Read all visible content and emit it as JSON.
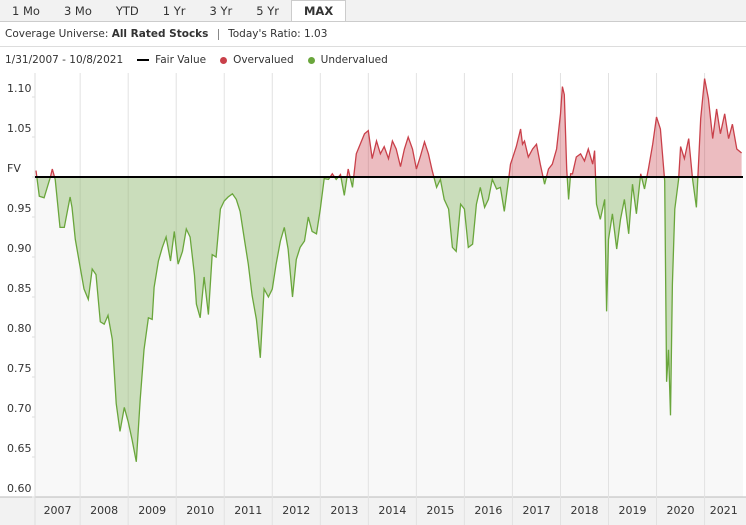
{
  "tabs": [
    "1 Mo",
    "3 Mo",
    "YTD",
    "1 Yr",
    "3 Yr",
    "5 Yr",
    "MAX"
  ],
  "selected_tab": 6,
  "chart_data": {
    "type": "area-ratio",
    "universe_label": "Coverage Universe:",
    "universe": "All Rated Stocks",
    "ratio_text": "Today's Ratio: 1.03",
    "date_range": "1/31/2007 - 10/8/2021",
    "legend": [
      {
        "name": "Fair Value",
        "color": "#000000"
      },
      {
        "name": "Overvalued",
        "color": "#c9404a"
      },
      {
        "name": "Undervalued",
        "color": "#6aa63c"
      }
    ],
    "fair_value": 1,
    "xlim": [
      2007.06,
      2021.8
    ],
    "xticks": [
      2007,
      2008,
      2009,
      2010,
      2011,
      2012,
      2013,
      2014,
      2015,
      2016,
      2017,
      2018,
      2019,
      2020,
      2021
    ],
    "ylim": [
      0.6,
      1.13
    ],
    "yticks": [
      {
        "value": 0.6,
        "label": "0.60"
      },
      0.65,
      {
        "value": 0.7,
        "label": "0.70"
      },
      0.75,
      {
        "value": 0.8,
        "label": "0.80"
      },
      0.85,
      {
        "value": 0.9,
        "label": "0.90"
      },
      0.95,
      {
        "value": 1,
        "label": "FV"
      },
      1.05,
      {
        "value": 1.1,
        "label": "1.10"
      }
    ],
    "x": [
      2007.08,
      2007.15,
      2007.25,
      2007.38,
      2007.42,
      2007.48,
      2007.58,
      2007.67,
      2007.79,
      2007.83,
      2007.9,
      2008.0,
      2008.08,
      2008.17,
      2008.25,
      2008.33,
      2008.42,
      2008.5,
      2008.58,
      2008.67,
      2008.75,
      2008.83,
      2008.92,
      2009.0,
      2009.08,
      2009.17,
      2009.25,
      2009.33,
      2009.42,
      2009.5,
      2009.54,
      2009.63,
      2009.71,
      2009.79,
      2009.88,
      2009.96,
      2010.04,
      2010.13,
      2010.21,
      2010.29,
      2010.38,
      2010.42,
      2010.5,
      2010.58,
      2010.67,
      2010.75,
      2010.83,
      2010.92,
      2011.0,
      2011.08,
      2011.17,
      2011.25,
      2011.33,
      2011.42,
      2011.5,
      2011.58,
      2011.67,
      2011.75,
      2011.83,
      2011.92,
      2012.0,
      2012.08,
      2012.17,
      2012.25,
      2012.33,
      2012.42,
      2012.5,
      2012.58,
      2012.67,
      2012.75,
      2012.83,
      2012.92,
      2013.0,
      2013.08,
      2013.17,
      2013.25,
      2013.33,
      2013.42,
      2013.5,
      2013.58,
      2013.67,
      2013.75,
      2013.83,
      2013.92,
      2014.0,
      2014.08,
      2014.17,
      2014.25,
      2014.33,
      2014.42,
      2014.5,
      2014.58,
      2014.67,
      2014.75,
      2014.83,
      2014.92,
      2015.0,
      2015.08,
      2015.17,
      2015.25,
      2015.33,
      2015.42,
      2015.5,
      2015.58,
      2015.67,
      2015.75,
      2015.83,
      2015.92,
      2016.0,
      2016.08,
      2016.17,
      2016.25,
      2016.33,
      2016.42,
      2016.5,
      2016.58,
      2016.67,
      2016.75,
      2016.83,
      2016.92,
      2016.96,
      2017.0,
      2017.08,
      2017.17,
      2017.21,
      2017.25,
      2017.33,
      2017.42,
      2017.5,
      2017.58,
      2017.67,
      2017.75,
      2017.83,
      2017.92,
      2018.0,
      2018.04,
      2018.08,
      2018.13,
      2018.17,
      2018.21,
      2018.25,
      2018.33,
      2018.42,
      2018.5,
      2018.58,
      2018.67,
      2018.71,
      2018.75,
      2018.83,
      2018.92,
      2018.96,
      2019.0,
      2019.08,
      2019.17,
      2019.25,
      2019.33,
      2019.42,
      2019.5,
      2019.58,
      2019.67,
      2019.75,
      2019.83,
      2019.92,
      2020.0,
      2020.08,
      2020.17,
      2020.21,
      2020.25,
      2020.29,
      2020.33,
      2020.38,
      2020.46,
      2020.5,
      2020.58,
      2020.67,
      2020.75,
      2020.83,
      2020.92,
      2021.0,
      2021.08,
      2021.17,
      2021.25,
      2021.33,
      2021.42,
      2021.5,
      2021.58,
      2021.67,
      2021.77
    ],
    "values": [
      1.008,
      0.976,
      0.974,
      1.0,
      1.01,
      0.997,
      0.937,
      0.937,
      0.975,
      0.962,
      0.922,
      0.887,
      0.86,
      0.847,
      0.885,
      0.878,
      0.819,
      0.816,
      0.827,
      0.797,
      0.717,
      0.682,
      0.712,
      0.694,
      0.672,
      0.644,
      0.722,
      0.784,
      0.824,
      0.822,
      0.862,
      0.895,
      0.912,
      0.925,
      0.895,
      0.932,
      0.891,
      0.907,
      0.935,
      0.925,
      0.877,
      0.841,
      0.824,
      0.875,
      0.828,
      0.903,
      0.9,
      0.96,
      0.97,
      0.975,
      0.979,
      0.972,
      0.957,
      0.922,
      0.891,
      0.852,
      0.822,
      0.774,
      0.86,
      0.85,
      0.86,
      0.891,
      0.92,
      0.937,
      0.91,
      0.85,
      0.897,
      0.912,
      0.92,
      0.95,
      0.932,
      0.929,
      0.96,
      0.998,
      0.997,
      1.004,
      0.997,
      1.003,
      0.977,
      1.01,
      0.987,
      1.029,
      1.041,
      1.054,
      1.058,
      1.023,
      1.045,
      1.029,
      1.038,
      1.023,
      1.045,
      1.035,
      1.013,
      1.035,
      1.05,
      1.035,
      1.01,
      1.025,
      1.044,
      1.029,
      1.008,
      0.987,
      0.997,
      0.972,
      0.96,
      0.912,
      0.907,
      0.966,
      0.96,
      0.912,
      0.916,
      0.966,
      0.987,
      0.962,
      0.972,
      0.997,
      0.985,
      0.987,
      0.957,
      0.997,
      1.016,
      1.023,
      1.038,
      1.06,
      1.041,
      1.045,
      1.025,
      1.035,
      1.041,
      1.016,
      0.991,
      1.01,
      1.016,
      1.035,
      1.079,
      1.113,
      1.103,
      1.01,
      0.972,
      1.004,
      1.004,
      1.025,
      1.029,
      1.02,
      1.035,
      1.016,
      1.033,
      0.966,
      0.947,
      0.972,
      0.832,
      0.922,
      0.954,
      0.91,
      0.947,
      0.972,
      0.929,
      0.991,
      0.954,
      1.004,
      0.985,
      1.01,
      1.041,
      1.075,
      1.06,
      0.995,
      0.744,
      0.784,
      0.702,
      0.866,
      0.96,
      0.997,
      1.038,
      1.023,
      1.048,
      0.997,
      0.962,
      1.073,
      1.123,
      1.098,
      1.048,
      1.085,
      1.054,
      1.079,
      1.048,
      1.066,
      1.035,
      1.03
    ]
  }
}
